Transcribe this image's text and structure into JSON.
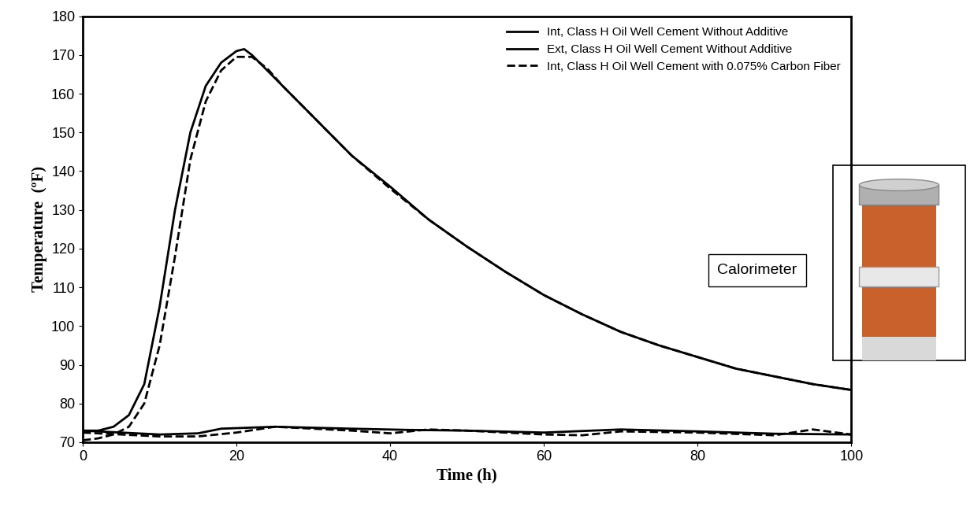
{
  "chart_data": {
    "type": "line",
    "x_label": "Time (h)",
    "y_label": "Temperature  (ºF)",
    "xlim": [
      0,
      100
    ],
    "xticks": [
      0,
      20,
      40,
      60,
      80,
      100
    ],
    "ylim": [
      70,
      180
    ],
    "yticks": [
      70,
      80,
      90,
      100,
      110,
      120,
      130,
      140,
      150,
      160,
      170,
      180
    ],
    "grid": false,
    "legend": "upper right",
    "annotations": [
      {
        "text": "Calorimeter"
      }
    ],
    "series": [
      {
        "name": "Int, Class H Oil Well Cement Without Additive",
        "color": "#000000",
        "line_style": "solid",
        "x": [
          0,
          2,
          4,
          6,
          8,
          10,
          12,
          14,
          16,
          18,
          20,
          21,
          22,
          24,
          26,
          30,
          35,
          40,
          45,
          50,
          55,
          60,
          65,
          70,
          75,
          80,
          85,
          90,
          95,
          100
        ],
        "values": [
          73,
          73,
          74,
          77,
          85,
          105,
          130,
          150,
          162,
          168,
          171,
          171.5,
          170,
          166,
          162,
          154,
          144,
          136,
          127.5,
          120.5,
          114,
          108,
          103,
          98.5,
          95,
          92,
          89,
          87,
          85,
          83.5
        ]
      },
      {
        "name": "Ext, Class H Oil Well Cement Without Additive",
        "color": "#000000",
        "line_style": "solid",
        "x": [
          0,
          5,
          10,
          15,
          18,
          25,
          35,
          42,
          50,
          60,
          70,
          80,
          90,
          100
        ],
        "values": [
          73,
          72.5,
          72,
          72.3,
          73.5,
          74,
          73.5,
          73.2,
          73,
          72.5,
          73.3,
          72.8,
          72.2,
          72
        ]
      },
      {
        "name": "Int, Class H Oil Well Cement with 0.075% Carbon Fiber",
        "color": "#000000",
        "line_style": "dashed",
        "x": [
          0,
          2,
          4,
          6,
          8,
          10,
          12,
          14,
          16,
          18,
          20,
          22,
          24,
          26,
          30,
          35,
          40,
          45,
          50,
          55,
          60,
          65,
          70,
          75,
          80,
          85,
          90,
          95,
          100
        ],
        "values": [
          70.5,
          71,
          72,
          74,
          80,
          95,
          118,
          143,
          158,
          166,
          169.5,
          169.5,
          166.5,
          162,
          154,
          144,
          135.5,
          127.5,
          120.5,
          114,
          108,
          103,
          98.5,
          95,
          92,
          89,
          87,
          85,
          83.5
        ]
      },
      {
        "color": "#000000",
        "line_style": "dashed",
        "x": [
          0,
          5,
          10,
          15,
          20,
          25,
          35,
          40,
          45,
          50,
          60,
          65,
          70,
          80,
          90,
          95,
          100
        ],
        "values": [
          72.5,
          72,
          71.5,
          71.5,
          72.5,
          74,
          73,
          72.3,
          73.3,
          73,
          72,
          71.8,
          72.8,
          72.5,
          71.8,
          73.3,
          72
        ]
      }
    ]
  }
}
